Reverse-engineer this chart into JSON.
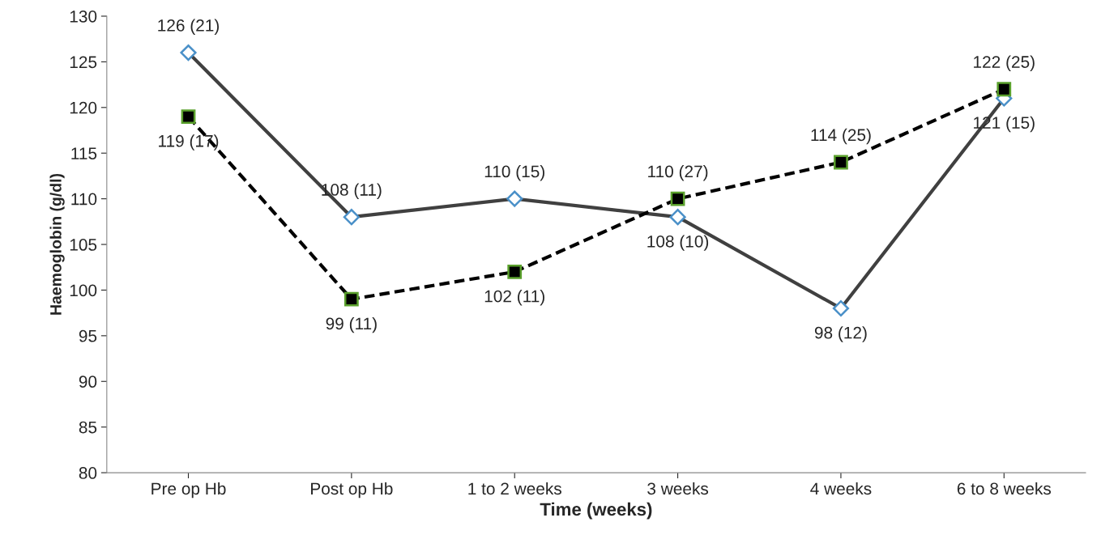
{
  "chart_data": {
    "type": "line",
    "categories": [
      "Pre op Hb",
      "Post op Hb",
      "1 to 2 weeks",
      "3 weeks",
      "4 weeks",
      "6 to 8 weeks"
    ],
    "xlabel": "Time (weeks)",
    "ylabel": "Haemoglobin (g/dl)",
    "ylim": [
      80,
      130
    ],
    "yticks": [
      80,
      85,
      90,
      95,
      100,
      105,
      110,
      115,
      120,
      125,
      130
    ],
    "grid": false,
    "legend": false,
    "series": [
      {
        "color": "#404040",
        "marker": "diamond",
        "line_style": "solid",
        "values": [
          126,
          108,
          110,
          108,
          98,
          121
        ],
        "value_labels": [
          "126 (21)",
          "108 (11)",
          "110 (15)",
          "108 (10)",
          "98 (12)",
          "121 (15)"
        ]
      },
      {
        "color": "#000000",
        "marker": "square",
        "line_style": "dashed",
        "values": [
          119,
          99,
          102,
          110,
          114,
          122
        ],
        "value_labels": [
          "119 (17)",
          "99 (11)",
          "102 (11)",
          "110 (27)",
          "114 (25)",
          "122 (25)"
        ]
      }
    ]
  }
}
